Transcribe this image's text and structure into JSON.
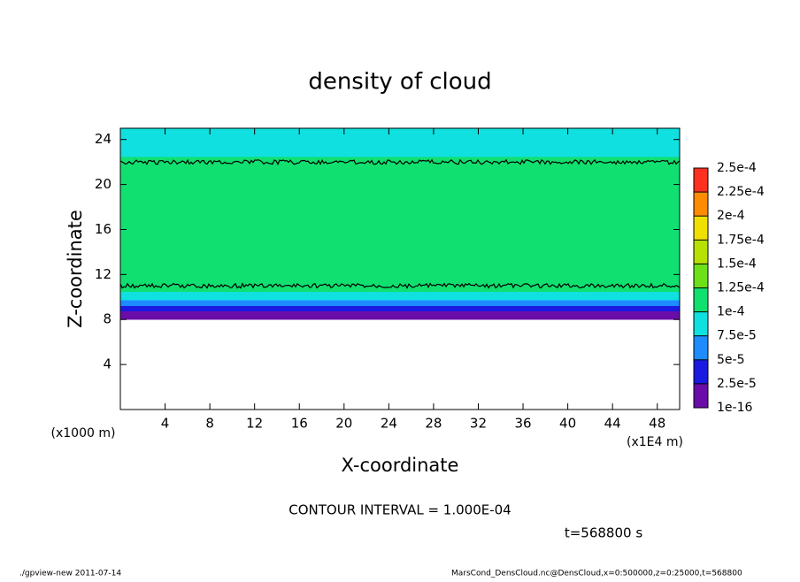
{
  "chart_data": {
    "type": "contour",
    "title": "density of cloud",
    "xlabel": "X-coordinate",
    "ylabel": "Z-coordinate",
    "x_unit": "(x1E4 m)",
    "y_unit": "(x1000 m)",
    "xlim": [
      0,
      50
    ],
    "xticks": [
      4,
      8,
      12,
      16,
      20,
      24,
      28,
      32,
      36,
      40,
      44,
      48
    ],
    "ylim": [
      0,
      25
    ],
    "yticks": [
      4,
      8,
      12,
      16,
      20,
      24
    ],
    "profile": {
      "z": [
        8,
        8.5,
        9,
        9.5,
        10,
        11,
        12,
        14,
        16,
        18,
        20,
        22,
        23,
        24,
        25
      ],
      "values": [
        1e-05,
        2e-05,
        4e-05,
        6e-05,
        8e-05,
        0.0001,
        0.000115,
        0.00012,
        0.000122,
        0.00012,
        0.00011,
        0.0001,
        9e-05,
        8e-05,
        7.5e-05
      ]
    },
    "colorbar": {
      "ticks": [
        {
          "value": 1e-16,
          "label": "1e-16"
        },
        {
          "value": 2.5e-05,
          "label": "2.5e-5"
        },
        {
          "value": 5e-05,
          "label": "5e-5"
        },
        {
          "value": 7.5e-05,
          "label": "7.5e-5"
        },
        {
          "value": 0.0001,
          "label": "1e-4"
        },
        {
          "value": 0.000125,
          "label": "1.25e-4"
        },
        {
          "value": 0.00015,
          "label": "1.5e-4"
        },
        {
          "value": 0.000175,
          "label": "1.75e-4"
        },
        {
          "value": 0.0002,
          "label": "2e-4"
        },
        {
          "value": 0.000225,
          "label": "2.25e-4"
        },
        {
          "value": 0.00025,
          "label": "2.5e-4"
        }
      ],
      "colors": [
        "#6a0da8",
        "#1a1ae0",
        "#1e8cff",
        "#10e0e0",
        "#10e070",
        "#6de01a",
        "#b8e000",
        "#f0e000",
        "#ff8c00",
        "#ff3020"
      ]
    },
    "contour_interval": "CONTOUR INTERVAL = 1.000E-04",
    "contour_level": 0.0001,
    "time_label": "t=568800 s",
    "footer_left": "./gpview-new  2011-07-14",
    "footer_right": "MarsCond_DensCloud.nc@DensCloud,x=0:500000,z=0:25000,t=568800"
  }
}
